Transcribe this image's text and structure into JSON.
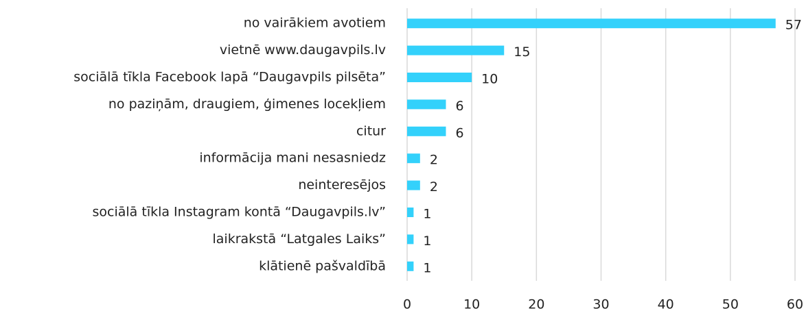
{
  "chart_data": {
    "type": "bar",
    "orientation": "horizontal",
    "categories": [
      "no vairākiem avotiem",
      "vietnē www.daugavpils.lv",
      "sociālā tīkla Facebook lapā “Daugavpils pilsēta”",
      "no paziņām, draugiem, ģimenes locekļiem",
      "citur",
      "informācija mani nesasniedz",
      "neinteresējos",
      "sociālā tīkla Instagram kontā “Daugavpils.lv”",
      "laikrakstā “Latgales Laiks”",
      "klātienē pašvaldībā"
    ],
    "values": [
      57,
      15,
      10,
      6,
      6,
      2,
      2,
      1,
      1,
      1
    ],
    "color": "#33d1fb",
    "xlim": [
      0,
      60
    ],
    "xticks": [
      0,
      10,
      20,
      30,
      40,
      50,
      60
    ],
    "grid": true
  }
}
